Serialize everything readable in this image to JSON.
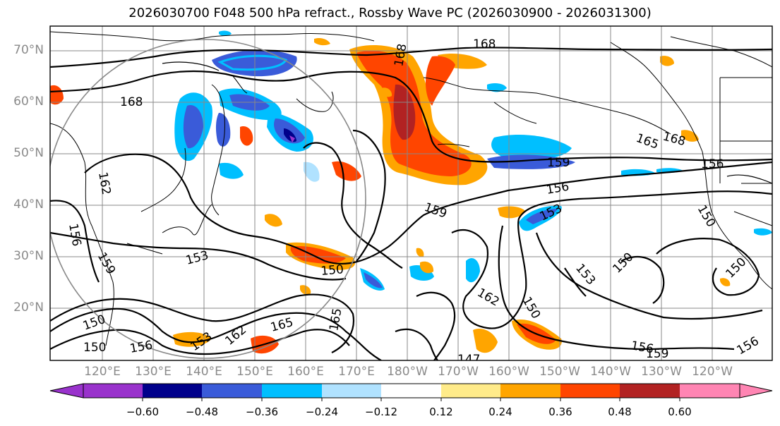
{
  "title": "2026030700 F048 500 hPa refract., Rossby Wave PC (2026030900 - 2026031300)",
  "lat_labels": [
    "70°N",
    "60°N",
    "50°N",
    "40°N",
    "30°N",
    "20°N"
  ],
  "lon_labels": [
    "120°E",
    "130°E",
    "140°E",
    "150°E",
    "160°E",
    "170°E",
    "180°W",
    "170°W",
    "160°W",
    "150°W",
    "140°W",
    "130°W",
    "120°W"
  ],
  "contour_labels": [
    "168",
    "168",
    "168",
    "165",
    "168",
    "159",
    "156",
    "159",
    "153",
    "150",
    "162",
    "156",
    "159",
    "153",
    "150",
    "153",
    "150",
    "162",
    "150",
    "147",
    "165",
    "162",
    "153",
    "150",
    "150",
    "156",
    "150",
    "156",
    "159",
    "156",
    "165",
    "156"
  ],
  "colorbar": {
    "colors": [
      "#9932CC",
      "#00008B",
      "#3A5BD9",
      "#00BFFF",
      "#B0E2FF",
      "#FFFFFF",
      "#FFEB8A",
      "#FFA500",
      "#FF4500",
      "#B22222",
      "#FF85B3"
    ],
    "tick_labels": [
      "−0.60",
      "−0.48",
      "−0.36",
      "−0.24",
      "−0.12",
      "0.12",
      "0.24",
      "0.36",
      "0.48",
      "0.60"
    ]
  },
  "colors": {
    "grid": "#888888",
    "contour": "#000000",
    "coast": "#000000"
  }
}
